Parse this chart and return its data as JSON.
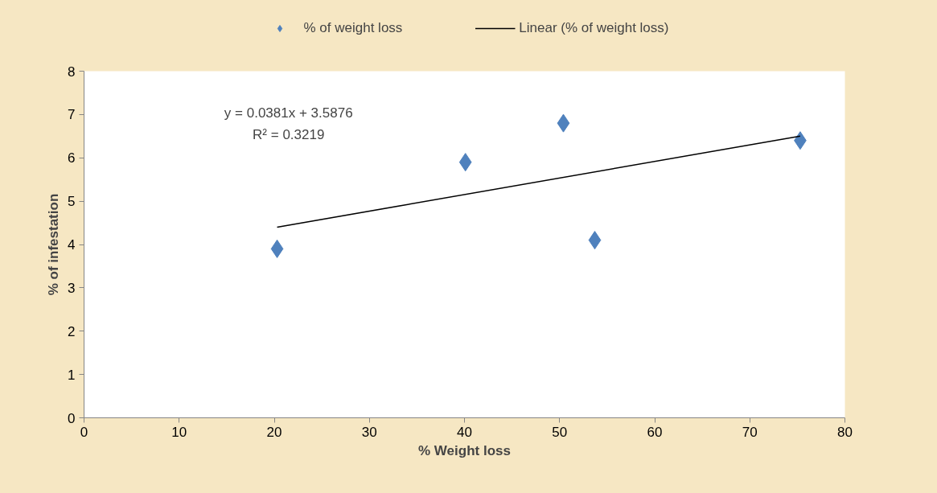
{
  "chart_data": {
    "type": "scatter",
    "xlabel": "% Weight loss",
    "ylabel": "% of infestation",
    "x": [
      20.3,
      40.1,
      50.4,
      53.7,
      75.3
    ],
    "series": [
      {
        "name": "% of weight loss",
        "color": "#4f81bd",
        "values": [
          3.9,
          5.9,
          6.8,
          4.1,
          6.4
        ],
        "marker": "diamond"
      },
      {
        "name": "Linear (% of weight loss)",
        "type": "line",
        "color": "#000000",
        "x": [
          20.3,
          75.3
        ],
        "values": [
          4.4,
          6.5
        ],
        "marker": "none",
        "line_style": "solid"
      }
    ],
    "annotations": [
      "y = 0.0381x + 3.5876",
      "R² = 0.3219"
    ],
    "xlim": [
      0,
      80
    ],
    "xticks": [
      0,
      10,
      20,
      30,
      40,
      50,
      60,
      70,
      80
    ],
    "ylim": [
      0,
      8
    ],
    "yticks": [
      0,
      1,
      2,
      3,
      4,
      5,
      6,
      7,
      8
    ],
    "grid": false,
    "legend": "top"
  }
}
